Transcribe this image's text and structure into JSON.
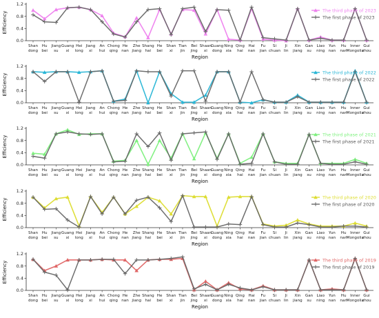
{
  "chart_data": [
    {
      "type": "line",
      "xlabel": "Region",
      "ylabel": "Efficiency",
      "ylim": [
        0,
        1.2
      ],
      "yticks": [
        "0.0",
        "0.4",
        "0.8",
        "1.2"
      ],
      "legend": "top-right",
      "categories": [
        "Shan dong",
        "Hu bei",
        "Jiang su",
        "Guang xi",
        "Hei long",
        "Jiang xi",
        "An hui",
        "Chong qing",
        "He nan",
        "Zhe jiang",
        "Shang hai",
        "He bei",
        "Shan xi",
        "Tian jin",
        "Bei jing",
        "Shaan xi",
        "Guang dong",
        "Ning xia",
        "Qing hai",
        "Hai nan",
        "Fu jian",
        "Si chuan",
        "Ji lin",
        "Xin jiang",
        "Gan su",
        "Liao ning",
        "Yun nan",
        "Hu nan",
        "Inner Mongolia",
        "Gui zhou"
      ],
      "series": [
        {
          "name": "The third phase of 2023",
          "color": "#ee82ee",
          "marker": "triangle",
          "values": [
            1.0,
            0.72,
            1.02,
            1.08,
            1.1,
            1.02,
            0.82,
            0.25,
            0.13,
            0.75,
            0.1,
            1.02,
            0.22,
            1.02,
            1.0,
            0.22,
            1.02,
            0.05,
            0.02,
            1.05,
            0.05,
            0.02,
            0.0,
            1.05,
            0.02,
            0.12,
            0.02,
            0.02,
            1.05,
            0.02
          ]
        },
        {
          "name": "The first phase of 2023",
          "color": "#666666",
          "marker": "plus",
          "values": [
            0.85,
            0.62,
            0.6,
            1.08,
            1.1,
            1.02,
            0.62,
            0.22,
            0.12,
            0.62,
            1.02,
            1.05,
            0.2,
            1.05,
            1.1,
            0.3,
            1.02,
            1.0,
            0.02,
            1.1,
            0.1,
            0.06,
            0.02,
            1.05,
            0.02,
            0.08,
            0.02,
            0.02,
            1.05,
            0.02
          ]
        }
      ]
    },
    {
      "type": "line",
      "xlabel": "Region",
      "ylabel": "Efficiency",
      "ylim": [
        0,
        1.2
      ],
      "yticks": [
        "0.0",
        "0.4",
        "0.8",
        "1.2"
      ],
      "legend": "top-right",
      "categories": [
        "Shan dong",
        "Hu bei",
        "Jiang su",
        "Guang xi",
        "Hei long",
        "Jiang xi",
        "An hui",
        "Chong qing",
        "He nan",
        "Zhe jiang",
        "Shang hai",
        "He bei",
        "Shan xi",
        "Tian jin",
        "Bei jing",
        "Shaan xi",
        "Guang dong",
        "Ning xia",
        "Qing hai",
        "Hai nan",
        "Fu jian",
        "Si chuan",
        "Ji lin",
        "Xin jiang",
        "Gan su",
        "Liao ning",
        "Yun nan",
        "Hu nan",
        "Inner Mongolia",
        "Gui zhou"
      ],
      "series": [
        {
          "name": "The third phase of 2022",
          "color": "#29b6d6",
          "marker": "triangle",
          "values": [
            1.02,
            1.0,
            1.02,
            1.02,
            1.0,
            1.02,
            1.05,
            0.05,
            0.12,
            1.05,
            0.0,
            1.02,
            0.3,
            0.02,
            0.02,
            0.25,
            1.02,
            1.02,
            0.02,
            0.0,
            0.1,
            0.02,
            0.02,
            0.25,
            0.02,
            0.02,
            0.02,
            0.02,
            1.05,
            0.02
          ]
        },
        {
          "name": "The first phase of 2022",
          "color": "#666666",
          "marker": "plus",
          "values": [
            1.02,
            0.7,
            1.02,
            1.02,
            0.02,
            1.02,
            1.05,
            0.05,
            0.08,
            1.05,
            1.02,
            1.02,
            0.22,
            1.05,
            1.05,
            0.05,
            1.02,
            1.02,
            0.02,
            1.02,
            0.1,
            0.02,
            0.02,
            0.2,
            0.02,
            0.02,
            0.02,
            0.02,
            1.02,
            0.02
          ]
        }
      ]
    },
    {
      "type": "line",
      "xlabel": "Region",
      "ylabel": "Efficiency",
      "ylim": [
        0,
        1.2
      ],
      "yticks": [
        "0.0",
        "0.4",
        "0.8",
        "1.2"
      ],
      "legend": "top-right",
      "categories": [
        "Shan dong",
        "Hu bei",
        "Jiang su",
        "Guang xi",
        "Hei long",
        "Jiang xi",
        "An hui",
        "Chong qing",
        "He nan",
        "Zhe jiang",
        "Shang hai",
        "He bei",
        "Shan xi",
        "Tian jin",
        "Bei jing",
        "Shaan xi",
        "Guang dong",
        "Ning xia",
        "Qing hai",
        "Hai nan",
        "Fu jian",
        "Si chuan",
        "Ji lin",
        "Xin jiang",
        "Gan su",
        "Liao ning",
        "Yun nan",
        "Hu nan",
        "Inner Mongolia",
        "Gui zhou"
      ],
      "series": [
        {
          "name": "The third phase of 2021",
          "color": "#7ef07e",
          "marker": "triangle",
          "values": [
            0.38,
            0.35,
            1.02,
            1.15,
            1.0,
            1.02,
            1.02,
            0.12,
            0.15,
            0.8,
            0.02,
            0.8,
            0.22,
            1.02,
            0.2,
            1.05,
            0.22,
            1.02,
            0.05,
            0.25,
            1.02,
            0.1,
            0.05,
            0.05,
            1.0,
            0.05,
            0.05,
            0.05,
            0.18,
            0.05
          ]
        },
        {
          "name": "The first phase of 2021",
          "color": "#666666",
          "marker": "plus",
          "values": [
            0.28,
            0.22,
            1.02,
            1.08,
            1.02,
            1.0,
            1.02,
            0.1,
            0.12,
            1.02,
            0.6,
            1.05,
            0.15,
            1.02,
            1.05,
            1.08,
            0.18,
            1.02,
            0.02,
            0.05,
            1.02,
            0.1,
            0.02,
            0.02,
            1.0,
            0.05,
            0.02,
            0.02,
            0.1,
            0.02
          ]
        }
      ]
    },
    {
      "type": "line",
      "xlabel": "Region",
      "ylabel": "Efficiency",
      "ylim": [
        0,
        1.2
      ],
      "yticks": [
        "0.0",
        "0.4",
        "0.8",
        "1.2"
      ],
      "legend": "top-right",
      "categories": [
        "Shan dong",
        "Hu bei",
        "Jiang su",
        "Guang xi",
        "Hei long",
        "Jiang xi",
        "An hui",
        "Chong qing",
        "He nan",
        "Zhe jiang",
        "Shang hai",
        "He bei",
        "Shan xi",
        "Tian jin",
        "Bei jing",
        "Shaan xi",
        "Guang dong",
        "Ning xia",
        "Qing hai",
        "Hai nan",
        "Fu jian",
        "Si chuan",
        "Ji lin",
        "Xin jiang",
        "Gan su",
        "Liao ning",
        "Yun nan",
        "Hu nan",
        "Inner Mongolia",
        "Gui zhou"
      ],
      "series": [
        {
          "name": "The third phase of 2020",
          "color": "#dddd33",
          "marker": "triangle",
          "values": [
            1.0,
            0.65,
            0.95,
            1.0,
            0.05,
            1.02,
            0.5,
            1.0,
            0.45,
            0.7,
            1.0,
            0.88,
            0.45,
            1.05,
            1.02,
            1.02,
            0.05,
            1.0,
            1.02,
            1.02,
            0.12,
            0.05,
            0.08,
            0.25,
            0.12,
            0.05,
            0.05,
            0.05,
            0.15,
            0.05
          ]
        },
        {
          "name": "The first phase of 2020",
          "color": "#666666",
          "marker": "plus",
          "values": [
            1.0,
            0.6,
            0.62,
            0.25,
            0.02,
            1.02,
            0.45,
            1.0,
            0.45,
            0.9,
            1.0,
            0.65,
            0.2,
            1.05,
            0.02,
            0.02,
            0.02,
            0.12,
            0.1,
            1.02,
            0.1,
            0.02,
            0.02,
            0.15,
            0.1,
            0.02,
            0.02,
            0.05,
            0.05,
            0.02
          ]
        }
      ]
    },
    {
      "type": "line",
      "xlabel": "Region",
      "ylabel": "Efficiency",
      "ylim": [
        0,
        1.2
      ],
      "yticks": [
        "0.0",
        "0.4",
        "0.8",
        "1.2"
      ],
      "legend": "top-right",
      "categories": [
        "Shan dong",
        "Hu bei",
        "Jiang su",
        "Guang xi",
        "Hei long",
        "Jiang xi",
        "An hui",
        "Chong qing",
        "He nan",
        "Zhe jiang",
        "Shang hai",
        "He bei",
        "Shan xi",
        "Tian jin",
        "Bei jing",
        "Shaan xi",
        "Guang dong",
        "Ning xia",
        "Qing hai",
        "Hai nan",
        "Fu jian",
        "Si chuan",
        "Ji lin",
        "Xin jiang",
        "Gan su",
        "Liao ning",
        "Yun nan",
        "Hu nan",
        "Inner Mongolia",
        "Gui zhou"
      ],
      "series": [
        {
          "name": "The third phase of 2019",
          "color": "#e06666",
          "marker": "triangle",
          "values": [
            1.02,
            0.65,
            0.8,
            1.0,
            1.0,
            1.0,
            1.02,
            1.0,
            1.0,
            0.65,
            1.0,
            1.02,
            1.02,
            1.05,
            0.02,
            0.3,
            0.02,
            0.25,
            0.05,
            0.02,
            0.15,
            0.02,
            0.02,
            0.02,
            1.0,
            0.02,
            0.05,
            0.02,
            1.05,
            0.02
          ]
        },
        {
          "name": "The first phase of 2019",
          "color": "#666666",
          "marker": "plus",
          "values": [
            1.02,
            0.6,
            0.5,
            0.02,
            1.0,
            1.0,
            1.02,
            1.02,
            0.55,
            1.0,
            1.0,
            1.02,
            1.05,
            1.1,
            0.05,
            0.2,
            0.02,
            0.2,
            0.08,
            0.02,
            0.12,
            0.02,
            0.02,
            0.02,
            1.0,
            0.02,
            0.02,
            0.02,
            1.05,
            0.02
          ]
        }
      ]
    }
  ]
}
